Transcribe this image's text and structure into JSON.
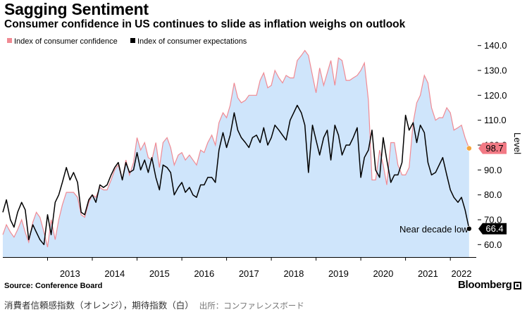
{
  "title": "Sagging Sentiment",
  "subtitle": "Consumer confidence in US continues to slide as inflation weighs on outlook",
  "source": "Source: Conference Board",
  "brand": "Bloomberg",
  "caption": {
    "main": "消費者信頼感指数（オレンジ），期待指数（白）",
    "credit": "出所：コンファレンスボード"
  },
  "colors": {
    "area_fill": "#cfe5fb",
    "confidence_line": "#f08a93",
    "expectations_line": "#000000",
    "confidence_marker": "#f5a53c",
    "confidence_badge_bg": "#f27a85",
    "expectations_badge_bg": "#000000"
  },
  "chart_data": {
    "type": "line",
    "title": "",
    "xlabel": "",
    "ylabel": "Level",
    "ylim": [
      55,
      145
    ],
    "yticks": [
      60.0,
      70.0,
      80.0,
      90.0,
      100.0,
      110.0,
      120.0,
      130.0,
      140.0
    ],
    "xlim": [
      2012.0,
      2022.58
    ],
    "xticks": [
      "2013",
      "2014",
      "2015",
      "2016",
      "2017",
      "2018",
      "2019",
      "2020",
      "2021",
      "2022"
    ],
    "grid": false,
    "legend_position": "top-left",
    "series": [
      {
        "name": "Index of consumer confidence",
        "style": "area",
        "last_value_label": "98.7",
        "points": [
          [
            2012.0,
            64
          ],
          [
            2012.08,
            68
          ],
          [
            2012.17,
            65
          ],
          [
            2012.25,
            63
          ],
          [
            2012.33,
            66
          ],
          [
            2012.42,
            70
          ],
          [
            2012.5,
            65
          ],
          [
            2012.58,
            61
          ],
          [
            2012.67,
            69
          ],
          [
            2012.75,
            73
          ],
          [
            2012.83,
            71
          ],
          [
            2012.92,
            65
          ],
          [
            2013.0,
            59
          ],
          [
            2013.08,
            70
          ],
          [
            2013.17,
            62
          ],
          [
            2013.25,
            70
          ],
          [
            2013.33,
            76
          ],
          [
            2013.42,
            81
          ],
          [
            2013.5,
            81
          ],
          [
            2013.58,
            81
          ],
          [
            2013.67,
            79
          ],
          [
            2013.75,
            72
          ],
          [
            2013.83,
            71
          ],
          [
            2013.92,
            77
          ],
          [
            2014.0,
            80
          ],
          [
            2014.08,
            79
          ],
          [
            2014.17,
            83
          ],
          [
            2014.25,
            82
          ],
          [
            2014.33,
            82
          ],
          [
            2014.42,
            86
          ],
          [
            2014.5,
            90
          ],
          [
            2014.58,
            92
          ],
          [
            2014.67,
            86
          ],
          [
            2014.75,
            94
          ],
          [
            2014.83,
            88
          ],
          [
            2014.92,
            93
          ],
          [
            2015.0,
            103
          ],
          [
            2015.08,
            98
          ],
          [
            2015.17,
            101
          ],
          [
            2015.25,
            95
          ],
          [
            2015.33,
            94
          ],
          [
            2015.42,
            101
          ],
          [
            2015.5,
            91
          ],
          [
            2015.58,
            101
          ],
          [
            2015.67,
            103
          ],
          [
            2015.75,
            99
          ],
          [
            2015.83,
            92
          ],
          [
            2015.92,
            96
          ],
          [
            2016.0,
            97
          ],
          [
            2016.08,
            94
          ],
          [
            2016.17,
            96
          ],
          [
            2016.25,
            94
          ],
          [
            2016.33,
            92
          ],
          [
            2016.42,
            98
          ],
          [
            2016.5,
            97
          ],
          [
            2016.58,
            101
          ],
          [
            2016.67,
            104
          ],
          [
            2016.75,
            100
          ],
          [
            2016.83,
            109
          ],
          [
            2016.92,
            113
          ],
          [
            2017.0,
            111
          ],
          [
            2017.08,
            116
          ],
          [
            2017.17,
            125
          ],
          [
            2017.25,
            119
          ],
          [
            2017.33,
            117
          ],
          [
            2017.42,
            118
          ],
          [
            2017.5,
            120
          ],
          [
            2017.58,
            120
          ],
          [
            2017.67,
            120
          ],
          [
            2017.75,
            126
          ],
          [
            2017.83,
            129
          ],
          [
            2017.92,
            123
          ],
          [
            2018.0,
            124
          ],
          [
            2018.08,
            130
          ],
          [
            2018.17,
            127
          ],
          [
            2018.25,
            125
          ],
          [
            2018.33,
            128
          ],
          [
            2018.42,
            127
          ],
          [
            2018.5,
            127
          ],
          [
            2018.58,
            134
          ],
          [
            2018.67,
            136
          ],
          [
            2018.75,
            138
          ],
          [
            2018.83,
            136
          ],
          [
            2018.92,
            128
          ],
          [
            2019.0,
            121
          ],
          [
            2019.08,
            131
          ],
          [
            2019.17,
            124
          ],
          [
            2019.25,
            129
          ],
          [
            2019.33,
            134
          ],
          [
            2019.42,
            124
          ],
          [
            2019.5,
            135
          ],
          [
            2019.58,
            134
          ],
          [
            2019.67,
            126
          ],
          [
            2019.75,
            126
          ],
          [
            2019.83,
            127
          ],
          [
            2019.92,
            128
          ],
          [
            2020.0,
            130
          ],
          [
            2020.08,
            133
          ],
          [
            2020.17,
            118
          ],
          [
            2020.25,
            86
          ],
          [
            2020.33,
            86
          ],
          [
            2020.42,
            98
          ],
          [
            2020.5,
            92
          ],
          [
            2020.58,
            84
          ],
          [
            2020.67,
            101
          ],
          [
            2020.75,
            101
          ],
          [
            2020.83,
            92
          ],
          [
            2020.92,
            88
          ],
          [
            2021.0,
            88
          ],
          [
            2021.08,
            91
          ],
          [
            2021.17,
            109
          ],
          [
            2021.25,
            117
          ],
          [
            2021.33,
            120
          ],
          [
            2021.42,
            128
          ],
          [
            2021.5,
            125
          ],
          [
            2021.58,
            115
          ],
          [
            2021.67,
            110
          ],
          [
            2021.75,
            111
          ],
          [
            2021.83,
            111
          ],
          [
            2021.92,
            115
          ],
          [
            2022.0,
            113
          ],
          [
            2022.08,
            106
          ],
          [
            2022.17,
            107
          ],
          [
            2022.25,
            108
          ],
          [
            2022.33,
            103
          ],
          [
            2022.42,
            98.7
          ]
        ]
      },
      {
        "name": "Index of consumer expectations",
        "style": "line",
        "last_value_label": "66.4",
        "points": [
          [
            2012.0,
            73
          ],
          [
            2012.08,
            78
          ],
          [
            2012.17,
            70
          ],
          [
            2012.25,
            67
          ],
          [
            2012.33,
            73
          ],
          [
            2012.42,
            77
          ],
          [
            2012.5,
            74
          ],
          [
            2012.58,
            62
          ],
          [
            2012.67,
            68
          ],
          [
            2012.75,
            65
          ],
          [
            2012.83,
            62
          ],
          [
            2012.92,
            60
          ],
          [
            2013.0,
            72
          ],
          [
            2013.08,
            64
          ],
          [
            2013.17,
            77
          ],
          [
            2013.25,
            80
          ],
          [
            2013.33,
            85
          ],
          [
            2013.42,
            91
          ],
          [
            2013.5,
            86
          ],
          [
            2013.58,
            89
          ],
          [
            2013.67,
            85
          ],
          [
            2013.75,
            73
          ],
          [
            2013.83,
            72
          ],
          [
            2013.92,
            78
          ],
          [
            2014.0,
            80
          ],
          [
            2014.08,
            77
          ],
          [
            2014.17,
            84
          ],
          [
            2014.25,
            83
          ],
          [
            2014.33,
            84
          ],
          [
            2014.42,
            88
          ],
          [
            2014.5,
            91
          ],
          [
            2014.58,
            93
          ],
          [
            2014.67,
            86
          ],
          [
            2014.75,
            93
          ],
          [
            2014.83,
            89
          ],
          [
            2014.92,
            90
          ],
          [
            2015.0,
            97
          ],
          [
            2015.08,
            90
          ],
          [
            2015.17,
            94
          ],
          [
            2015.25,
            89
          ],
          [
            2015.33,
            95
          ],
          [
            2015.42,
            87
          ],
          [
            2015.5,
            82
          ],
          [
            2015.58,
            92
          ],
          [
            2015.67,
            91
          ],
          [
            2015.75,
            89
          ],
          [
            2015.83,
            80
          ],
          [
            2015.92,
            83
          ],
          [
            2016.0,
            85
          ],
          [
            2016.08,
            81
          ],
          [
            2016.17,
            83
          ],
          [
            2016.25,
            80
          ],
          [
            2016.33,
            79
          ],
          [
            2016.42,
            84
          ],
          [
            2016.5,
            84
          ],
          [
            2016.58,
            87
          ],
          [
            2016.67,
            87
          ],
          [
            2016.75,
            85
          ],
          [
            2016.83,
            98
          ],
          [
            2016.92,
            105
          ],
          [
            2017.0,
            99
          ],
          [
            2017.08,
            104
          ],
          [
            2017.17,
            113
          ],
          [
            2017.25,
            106
          ],
          [
            2017.33,
            103
          ],
          [
            2017.42,
            101
          ],
          [
            2017.5,
            99
          ],
          [
            2017.58,
            103
          ],
          [
            2017.67,
            104
          ],
          [
            2017.75,
            101
          ],
          [
            2017.83,
            107
          ],
          [
            2017.92,
            100
          ],
          [
            2018.0,
            103
          ],
          [
            2018.08,
            108
          ],
          [
            2018.17,
            106
          ],
          [
            2018.25,
            104
          ],
          [
            2018.33,
            102
          ],
          [
            2018.42,
            110
          ],
          [
            2018.5,
            113
          ],
          [
            2018.58,
            116
          ],
          [
            2018.67,
            113
          ],
          [
            2018.75,
            108
          ],
          [
            2018.83,
            89
          ],
          [
            2018.92,
            108
          ],
          [
            2019.0,
            102
          ],
          [
            2019.08,
            96
          ],
          [
            2019.17,
            103
          ],
          [
            2019.25,
            106
          ],
          [
            2019.33,
            94
          ],
          [
            2019.42,
            108
          ],
          [
            2019.5,
            104
          ],
          [
            2019.58,
            96
          ],
          [
            2019.67,
            100
          ],
          [
            2019.75,
            100
          ],
          [
            2019.83,
            103
          ],
          [
            2019.92,
            107
          ],
          [
            2020.0,
            87
          ],
          [
            2020.08,
            95
          ],
          [
            2020.17,
            98
          ],
          [
            2020.25,
            106
          ],
          [
            2020.33,
            90
          ],
          [
            2020.42,
            87
          ],
          [
            2020.5,
            103
          ],
          [
            2020.58,
            94
          ],
          [
            2020.67,
            85
          ],
          [
            2020.75,
            88
          ],
          [
            2020.83,
            88
          ],
          [
            2020.92,
            93
          ],
          [
            2021.0,
            112
          ],
          [
            2021.08,
            106
          ],
          [
            2021.17,
            109
          ],
          [
            2021.25,
            101
          ],
          [
            2021.33,
            108
          ],
          [
            2021.42,
            105
          ],
          [
            2021.5,
            93
          ],
          [
            2021.58,
            88
          ],
          [
            2021.67,
            89
          ],
          [
            2021.75,
            92
          ],
          [
            2021.83,
            95
          ],
          [
            2021.92,
            88
          ],
          [
            2022.0,
            82
          ],
          [
            2022.08,
            79
          ],
          [
            2022.17,
            77
          ],
          [
            2022.25,
            79
          ],
          [
            2022.33,
            74
          ],
          [
            2022.42,
            66.4
          ]
        ]
      }
    ],
    "annotations": [
      {
        "text": "Near decade low",
        "x": 2022.42,
        "y": 66.4
      }
    ]
  }
}
